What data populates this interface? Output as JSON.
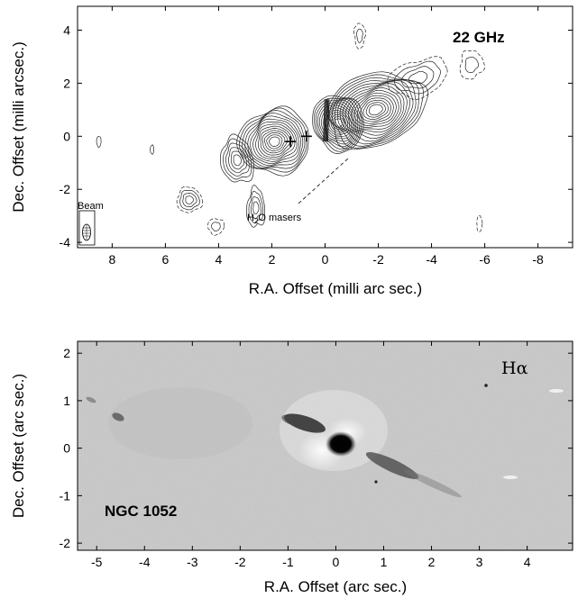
{
  "chart_data": [
    {
      "type": "contour",
      "label": "22 GHz",
      "xlabel": "R.A. Offset (milli arc sec.)",
      "ylabel": "Dec. Offset (milli arcsec.)",
      "xlim": [
        9.3,
        -9.3
      ],
      "ylim": [
        -4.2,
        4.9
      ],
      "xticks": [
        8,
        6,
        4,
        2,
        0,
        -2,
        -4,
        -6,
        -8
      ],
      "yticks": [
        4,
        2,
        0,
        -2,
        -4
      ],
      "annotations": [
        {
          "text_main": "H",
          "text_sub": "2",
          "text_tail": "O masers",
          "x": 1.2,
          "y": -0.5
        }
      ],
      "beam_label": "Beam",
      "masers": [
        {
          "x": 0.7,
          "y": 0.0
        },
        {
          "x": 1.3,
          "y": -0.2
        }
      ]
    },
    {
      "type": "image",
      "label": "Hα",
      "object": "NGC 1052",
      "xlabel": "R.A. Offset (arc sec.)",
      "ylabel": "Dec. Offset (arc sec.)",
      "xlim": [
        -5.4,
        4.95
      ],
      "ylim": [
        -2.15,
        2.25
      ],
      "xticks": [
        -5,
        -4,
        -3,
        -2,
        -1,
        0,
        1,
        2,
        3,
        4
      ],
      "yticks": [
        2,
        1,
        0,
        -1,
        -2
      ]
    }
  ]
}
